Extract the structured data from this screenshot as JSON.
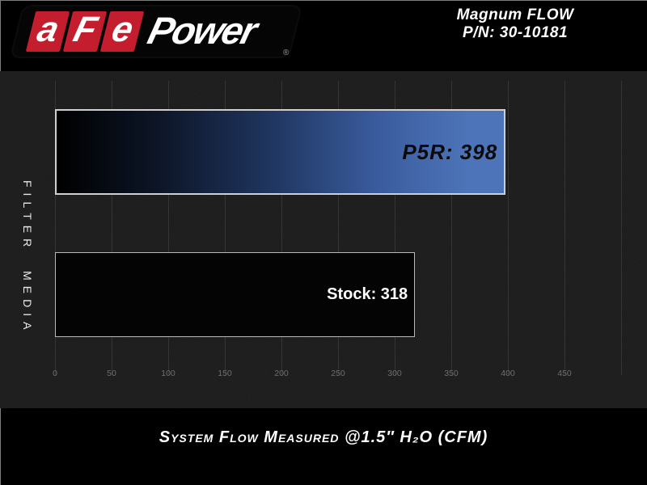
{
  "brand": {
    "letters": [
      "a",
      "F",
      "e"
    ],
    "power": "Power",
    "registered_mark": "®",
    "red": "#c41e2e"
  },
  "header": {
    "title_line1": "Magnum FLOW",
    "title_line2": "P/N: 30-10181"
  },
  "caption": "System Flow Measured @1.5″ H₂O (CFM)",
  "colors": {
    "accent_blue": "#4d74b8",
    "panel_bg": "#191919",
    "background": "#000000"
  },
  "chart_data": {
    "type": "bar",
    "orientation": "horizontal",
    "title": "Magnum FLOW P/N: 30-10181",
    "ylabel": "FILTER MEDIA",
    "xlabel": "System Flow Measured @1.5″ H₂O (CFM)",
    "categories": [
      "P5R",
      "Stock"
    ],
    "values": [
      398,
      318
    ],
    "bars": [
      {
        "name": "P5R",
        "value": 398,
        "label": "P5R: 398"
      },
      {
        "name": "Stock",
        "value": 318,
        "label": "Stock: 318"
      }
    ],
    "xlim": [
      0,
      500
    ],
    "xticks": [
      0,
      50,
      100,
      150,
      200,
      250,
      300,
      350,
      400,
      450
    ],
    "grid": true,
    "legend": "none"
  }
}
